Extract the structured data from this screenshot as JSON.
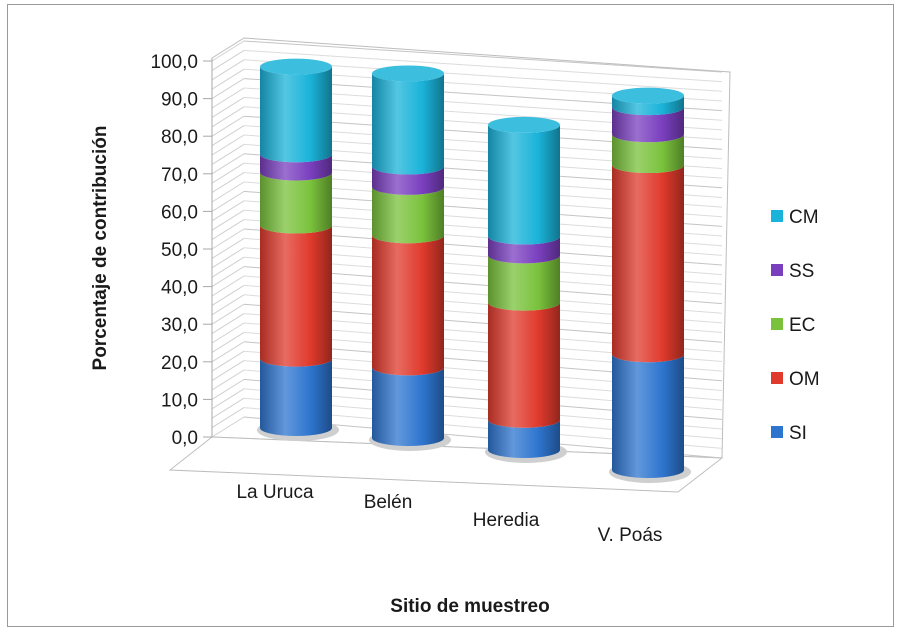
{
  "chart_data": {
    "type": "bar",
    "stacked": true,
    "three_d": true,
    "categories": [
      "La Uruca",
      "Belén",
      "Heredia",
      "V. Poás"
    ],
    "series": [
      {
        "name": "SI",
        "values": [
          19.0,
          19.0,
          8.0,
          30.0
        ],
        "color": "#2e75cf"
      },
      {
        "name": "OM",
        "values": [
          36.5,
          35.5,
          31.0,
          49.0
        ],
        "color": "#e03a2c"
      },
      {
        "name": "EC",
        "values": [
          14.5,
          13.0,
          12.5,
          8.0
        ],
        "color": "#7ac23c"
      },
      {
        "name": "SS",
        "values": [
          5.0,
          5.5,
          5.0,
          7.0
        ],
        "color": "#7a3fbf"
      },
      {
        "name": "CM",
        "values": [
          24.0,
          25.0,
          29.5,
          3.0
        ],
        "color": "#1ab3d9"
      }
    ],
    "ylabel": "Porcentaje de contribución",
    "xlabel": "Sitio de muestreo",
    "ylim": [
      0,
      100
    ],
    "yticks": [
      "0,0",
      "10,0",
      "20,0",
      "30,0",
      "40,0",
      "50,0",
      "60,0",
      "70,0",
      "80,0",
      "90,0",
      "100,0"
    ],
    "grid": true,
    "legend_position": "right",
    "legend_order": [
      "CM",
      "SS",
      "EC",
      "OM",
      "SI"
    ]
  }
}
